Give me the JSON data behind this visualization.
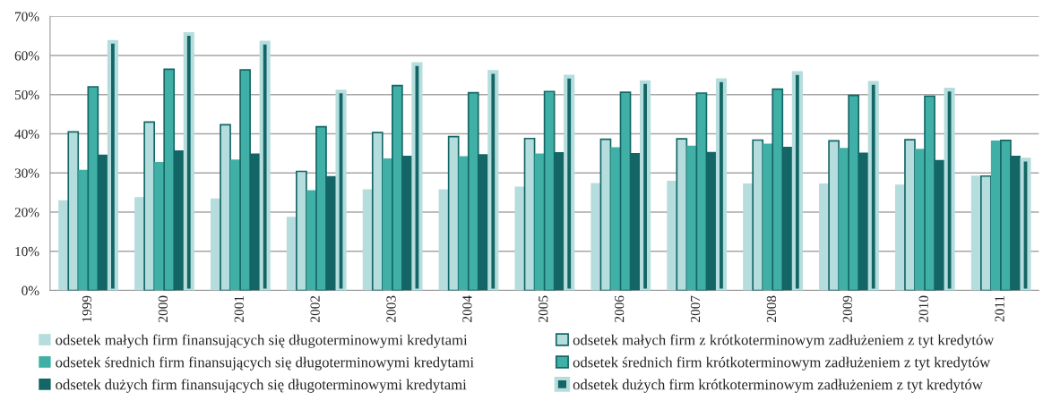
{
  "chart_data": {
    "type": "bar",
    "categories": [
      "1999",
      "2000",
      "2001",
      "2002",
      "2003",
      "2004",
      "2005",
      "2006",
      "2007",
      "2008",
      "2009",
      "2010",
      "2011"
    ],
    "series": [
      {
        "name": "odsetek małych firm finansujących się długoterminowymi kredytami",
        "color": "#b5dddd",
        "values": [
          23,
          23.8,
          23.5,
          18.8,
          25.8,
          25.8,
          26.5,
          27.4,
          28,
          27.3,
          27.3,
          27,
          29.3
        ]
      },
      {
        "name": "odsetek małych firm z krótkoterminowym zadłużeniem z tyt kredytów",
        "color": "#b5dddd",
        "values": [
          40.5,
          43,
          42.3,
          30.4,
          40.3,
          39.3,
          38.8,
          38.6,
          38.7,
          38.4,
          38.2,
          38.5,
          29.2
        ]
      },
      {
        "name": "odsetek średnich firm finansujących się długoterminowymi kredytami",
        "color": "#40b0a6",
        "values": [
          30.8,
          32.8,
          33.4,
          25.6,
          33.7,
          34.3,
          35,
          36.6,
          37,
          37.5,
          36.4,
          36.2,
          38.3
        ]
      },
      {
        "name": "odsetek średnich firm krótkoterminowym zadłużeniem z tyt kredytów",
        "color": "#40b0a6",
        "values": [
          52,
          56.5,
          56.3,
          41.8,
          52.3,
          50.5,
          50.8,
          50.6,
          50.4,
          51.4,
          49.8,
          49.6,
          38.3
        ]
      },
      {
        "name": "odsetek dużych firm finansujących się długoterminowymi kredytami",
        "color": "#136665",
        "values": [
          34.7,
          35.8,
          35,
          29.2,
          34.4,
          34.8,
          35.3,
          35.1,
          35.4,
          36.7,
          35.2,
          33.3,
          34.4
        ]
      },
      {
        "name": "odsetek dużych firm krótkoterminowym zadłużeniem z tyt kredytów",
        "color": "#136665",
        "values": [
          63.5,
          65.5,
          63.3,
          50.8,
          57.8,
          55.8,
          54.6,
          53.2,
          53.7,
          55.5,
          53,
          51.3,
          33.4
        ]
      }
    ],
    "ylim": [
      0,
      70
    ],
    "yticks": [
      {
        "value": 0,
        "label": "0%"
      },
      {
        "value": 10,
        "label": "10%"
      },
      {
        "value": 20,
        "label": "20%"
      },
      {
        "value": 30,
        "label": "30%"
      },
      {
        "value": 40,
        "label": "40%"
      },
      {
        "value": 50,
        "label": "50%"
      },
      {
        "value": 60,
        "label": "60%"
      },
      {
        "value": 70,
        "label": "70%"
      }
    ],
    "grid": "y",
    "legend": "bottom"
  }
}
